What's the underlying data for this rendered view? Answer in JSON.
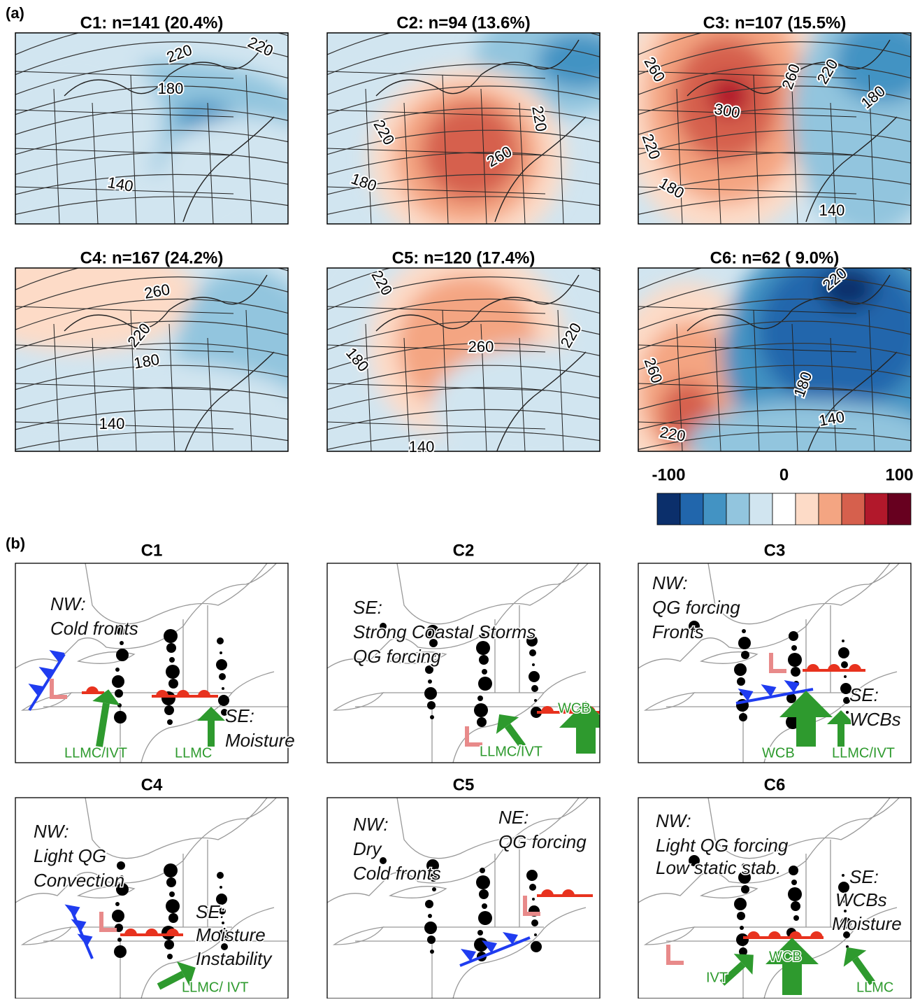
{
  "panel_a": {
    "label": "(a)",
    "maps": [
      {
        "title": "C1: n=141 (20.4%)",
        "contour_labels": [
          "220",
          "220",
          "180",
          "140"
        ]
      },
      {
        "title": "C2: n=94 (13.6%)",
        "contour_labels": [
          "220",
          "220",
          "260",
          "180"
        ]
      },
      {
        "title": "C3: n=107 (15.5%)",
        "contour_labels": [
          "260",
          "220",
          "260",
          "300",
          "180",
          "220",
          "180",
          "140"
        ]
      },
      {
        "title": "C4: n=167 (24.2%)",
        "contour_labels": [
          "260",
          "220",
          "180",
          "140"
        ]
      },
      {
        "title": "C5: n=120 (17.4%)",
        "contour_labels": [
          "220",
          "260",
          "220",
          "180",
          "140"
        ]
      },
      {
        "title": "C6: n=62 ( 9.0%)",
        "contour_labels": [
          "220",
          "260",
          "180",
          "140",
          "220"
        ]
      }
    ],
    "colorbar": {
      "range": [
        -100,
        100
      ],
      "ticks": [
        -100,
        0,
        100
      ],
      "colors": [
        "#0b2f6b",
        "#2166ac",
        "#4393c3",
        "#92c5de",
        "#d1e5f0",
        "#ffffff",
        "#fddbc7",
        "#f4a582",
        "#d6604d",
        "#b2182b",
        "#67001f"
      ]
    }
  },
  "panel_b": {
    "label": "(b)",
    "maps": [
      {
        "title": "C1",
        "notes": [
          "NW:",
          "Cold fronts",
          "SE:",
          "Moisture"
        ],
        "flow_labels": [
          "LLMC/IVT",
          "LLMC"
        ]
      },
      {
        "title": "C2",
        "notes": [
          "SE:",
          "Strong Coastal Storms",
          "QG forcing"
        ],
        "flow_labels": [
          "WCB",
          "LLMC/IVT"
        ]
      },
      {
        "title": "C3",
        "notes": [
          "NW:",
          "QG forcing",
          "Fronts",
          "SE:",
          "WCBs"
        ],
        "flow_labels": [
          "WCB",
          "LLMC/IVT"
        ]
      },
      {
        "title": "C4",
        "notes": [
          "NW:",
          "Light QG",
          "Convection",
          "SE:",
          "Moisture",
          "Instability"
        ],
        "flow_labels": [
          "LLMC/ IVT"
        ]
      },
      {
        "title": "C5",
        "notes": [
          "NW:",
          "Dry",
          "Cold fronts",
          "NE:",
          "QG forcing"
        ],
        "flow_labels": []
      },
      {
        "title": "C6",
        "notes": [
          "NW:",
          "Light QG forcing",
          "Low static stab.",
          "SE:",
          "WCBs",
          "Moisture"
        ],
        "flow_labels": [
          "IVT",
          "WCB",
          "LLMC"
        ]
      }
    ]
  }
}
